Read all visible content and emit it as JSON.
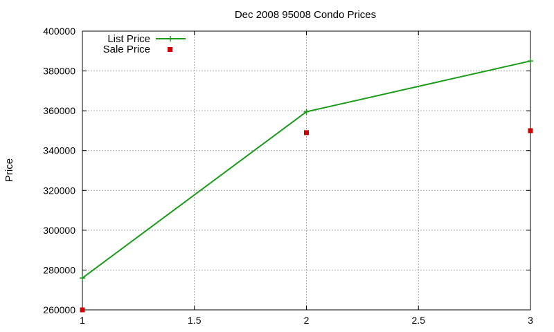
{
  "chart_data": {
    "type": "line",
    "title": "Dec 2008 95008 Condo Prices",
    "xlabel": "",
    "ylabel": "Price",
    "xlim": [
      1,
      3
    ],
    "ylim": [
      260000,
      400000
    ],
    "x_ticks": [
      "1",
      "1.5",
      "2",
      "2.5",
      "3"
    ],
    "x_tick_values": [
      1,
      1.5,
      2,
      2.5,
      3
    ],
    "y_ticks": [
      "260000",
      "280000",
      "300000",
      "320000",
      "340000",
      "360000",
      "380000",
      "400000"
    ],
    "y_tick_values": [
      260000,
      280000,
      300000,
      320000,
      340000,
      360000,
      380000,
      400000
    ],
    "grid": true,
    "legend_position": "top-left",
    "series": [
      {
        "name": "List Price",
        "style": "line-points",
        "color": "#1a9a1a",
        "x": [
          1,
          2,
          3
        ],
        "values": [
          276000,
          359500,
          385000
        ]
      },
      {
        "name": "Sale Price",
        "style": "points",
        "color": "#cc0000",
        "x": [
          1,
          2,
          3
        ],
        "values": [
          260000,
          349000,
          350000
        ]
      }
    ]
  }
}
